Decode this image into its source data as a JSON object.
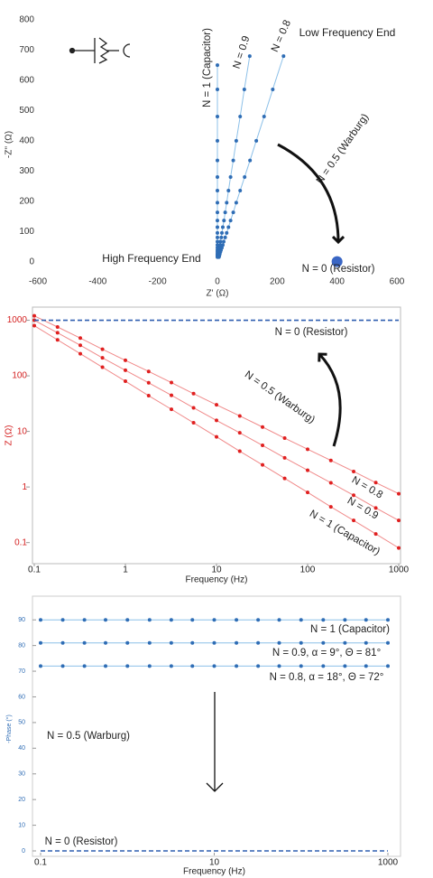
{
  "chart_data": [
    {
      "type": "scatter",
      "xlabel": "Z' (Ω)",
      "ylabel": "-Z'' (Ω)",
      "xlim": [
        -600,
        600
      ],
      "ylim": [
        -25,
        800
      ],
      "xticks": [
        -600,
        -400,
        -200,
        0,
        200,
        400,
        600
      ],
      "yticks": [
        0,
        100,
        200,
        300,
        400,
        500,
        600,
        700,
        800
      ],
      "axis_color": "#333",
      "series": [
        {
          "color": "#2f6db5",
          "line_color": "#8cc0e8",
          "x": [
            0,
            0,
            0,
            0,
            0,
            0,
            0,
            0,
            0,
            0,
            0,
            0,
            0,
            0,
            0,
            0,
            0,
            0,
            0,
            0,
            0,
            0
          ],
          "values": [
            650,
            570,
            480,
            400,
            335,
            280,
            235,
            195,
            163,
            136,
            114,
            95,
            80,
            66,
            55,
            46,
            38,
            32,
            26,
            22,
            18,
            15
          ]
        },
        {
          "color": "#2f6db5",
          "line_color": "#8cc0e8",
          "x": [
            108,
            90,
            76,
            63,
            53,
            44,
            37,
            31,
            26,
            22,
            18,
            15,
            13,
            10,
            9,
            7,
            6,
            5,
            4,
            3,
            3,
            2
          ],
          "values": [
            680,
            570,
            480,
            400,
            335,
            280,
            235,
            195,
            163,
            136,
            114,
            95,
            80,
            66,
            55,
            46,
            38,
            32,
            26,
            22,
            18,
            15
          ]
        },
        {
          "color": "#2f6db5",
          "line_color": "#8cc0e8",
          "x": [
            221,
            185,
            156,
            130,
            109,
            91,
            76,
            63,
            53,
            44,
            37,
            31,
            26,
            21,
            18,
            15,
            12,
            10,
            8,
            7,
            6,
            5
          ],
          "values": [
            680,
            570,
            480,
            400,
            335,
            280,
            235,
            195,
            163,
            136,
            114,
            95,
            80,
            66,
            55,
            46,
            38,
            32,
            26,
            22,
            18,
            15
          ]
        },
        {
          "color": "#3a66c4",
          "line": false,
          "marker_radius": 6,
          "x": [
            400
          ],
          "values": [
            0
          ]
        }
      ],
      "annotations": [
        "N = 1 (Capacitor)",
        "N = 0.9",
        "N = 0.8",
        "Low Frequency End",
        "N = 0.5 (Warburg)",
        "High Frequency End",
        "N = 0 (Resistor)"
      ]
    },
    {
      "type": "line",
      "xlabel": "Frequency (Hz)",
      "ylabel": "Z (Ω)",
      "xscale": "log",
      "yscale": "log",
      "xlim": [
        0.1,
        1000
      ],
      "ylim": [
        0.045,
        1600
      ],
      "xticks": [
        0.1,
        1,
        10,
        100,
        1000
      ],
      "yticks": [
        0.1,
        1,
        10,
        100,
        1000
      ],
      "axis_color": "#d42020",
      "x_axis_color": "#222",
      "series": [
        {
          "color": "#e02020",
          "line_color": "#f08a8a",
          "x": [
            0.1,
            0.18,
            0.32,
            0.56,
            1,
            1.8,
            3.2,
            5.6,
            10,
            18,
            32,
            56,
            100,
            180,
            320,
            560,
            1000
          ],
          "values": [
            800,
            444,
            250,
            143,
            80,
            44,
            25,
            14.3,
            8,
            4.4,
            2.5,
            1.43,
            0.8,
            0.44,
            0.25,
            0.143,
            0.08
          ]
        },
        {
          "color": "#e02020",
          "line_color": "#f08a8a",
          "x": [
            0.1,
            0.18,
            0.32,
            0.56,
            1,
            1.8,
            3.2,
            5.6,
            10,
            18,
            32,
            56,
            100,
            180,
            320,
            560,
            1000
          ],
          "values": [
            1000,
            596,
            355,
            211,
            126,
            75,
            44.7,
            26.6,
            15.8,
            9.44,
            5.62,
            3.35,
            2.0,
            1.19,
            0.71,
            0.42,
            0.25
          ]
        },
        {
          "color": "#e02020",
          "line_color": "#f08a8a",
          "x": [
            0.1,
            0.18,
            0.32,
            0.56,
            1,
            1.8,
            3.2,
            5.6,
            10,
            18,
            32,
            56,
            100,
            180,
            320,
            560,
            1000
          ],
          "values": [
            1200,
            757,
            478,
            301,
            190,
            120,
            75.7,
            47.8,
            30.1,
            19,
            12,
            7.57,
            4.78,
            3.01,
            1.9,
            1.2,
            0.757
          ]
        },
        {
          "color": "#2f5fb0",
          "markers": false,
          "dashed": true,
          "x": [
            0.1,
            1000
          ],
          "values": [
            1000,
            1000
          ]
        }
      ],
      "annotations": [
        "N = 0 (Resistor)",
        "N = 0.5 (Warburg)",
        "N = 0.8",
        "N = 0.9",
        "N = 1 (Capacitor)"
      ]
    },
    {
      "type": "line",
      "xlabel": "Frequency (Hz)",
      "ylabel": "-Phase (°)",
      "xscale": "log",
      "xlim": [
        0.1,
        1000
      ],
      "ylim": [
        0,
        95
      ],
      "xticks": [
        0.1,
        10,
        1000
      ],
      "yticks": [
        0,
        10,
        20,
        30,
        40,
        50,
        60,
        70,
        80,
        90
      ],
      "axis_color": "#2f6db5",
      "x_axis_color": "#222",
      "series": [
        {
          "color": "#2f6db5",
          "line_color": "#8cc0e8",
          "x": [
            0.1,
            0.18,
            0.32,
            0.56,
            1,
            1.8,
            3.2,
            5.6,
            10,
            18,
            32,
            56,
            100,
            180,
            320,
            560,
            1000
          ],
          "values": [
            90,
            90,
            90,
            90,
            90,
            90,
            90,
            90,
            90,
            90,
            90,
            90,
            90,
            90,
            90,
            90,
            90
          ]
        },
        {
          "color": "#2f6db5",
          "line_color": "#8cc0e8",
          "x": [
            0.1,
            0.18,
            0.32,
            0.56,
            1,
            1.8,
            3.2,
            5.6,
            10,
            18,
            32,
            56,
            100,
            180,
            320,
            560,
            1000
          ],
          "values": [
            81,
            81,
            81,
            81,
            81,
            81,
            81,
            81,
            81,
            81,
            81,
            81,
            81,
            81,
            81,
            81,
            81
          ]
        },
        {
          "color": "#2f6db5",
          "line_color": "#8cc0e8",
          "x": [
            0.1,
            0.18,
            0.32,
            0.56,
            1,
            1.8,
            3.2,
            5.6,
            10,
            18,
            32,
            56,
            100,
            180,
            320,
            560,
            1000
          ],
          "values": [
            72,
            72,
            72,
            72,
            72,
            72,
            72,
            72,
            72,
            72,
            72,
            72,
            72,
            72,
            72,
            72,
            72
          ]
        },
        {
          "color": "#2f5fb0",
          "markers": false,
          "dashed": true,
          "x": [
            0.1,
            1000
          ],
          "values": [
            0,
            0
          ]
        }
      ],
      "annotations": [
        "N = 1 (Capacitor)",
        "N = 0.9, α = 9°, Θ = 81°",
        "N = 0.8, α = 18°, Θ = 72°",
        "N = 0.5 (Warburg)",
        "N = 0 (Resistor)"
      ]
    }
  ]
}
